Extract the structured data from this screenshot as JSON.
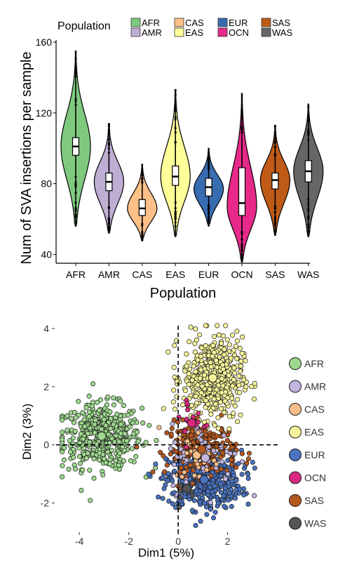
{
  "chart_data": [
    {
      "type": "violin",
      "xlabel": "Population",
      "ylabel": "Num of SVA insertions per sample",
      "ylim": [
        35,
        160
      ],
      "yticks": [
        40,
        80,
        120,
        160
      ],
      "legend": {
        "title": "Population",
        "placement": "top",
        "labels": [
          "AFR",
          "AMR",
          "CAS",
          "EAS",
          "EUR",
          "OCN",
          "SAS",
          "WAS"
        ]
      },
      "categories": [
        "AFR",
        "AMR",
        "CAS",
        "EAS",
        "EUR",
        "OCN",
        "SAS",
        "WAS"
      ],
      "colors": [
        "#7fc97f",
        "#beaed4",
        "#fdc086",
        "#ffff99",
        "#386cb0",
        "#e7298a",
        "#bf5b17",
        "#666666"
      ],
      "series": [
        {
          "category": "AFR",
          "min": 56,
          "q1": 96,
          "median": 101,
          "q3": 106,
          "max": 155,
          "mode": 101
        },
        {
          "category": "AMR",
          "min": 52,
          "q1": 76,
          "median": 81,
          "q3": 86,
          "max": 114,
          "mode": 81
        },
        {
          "category": "CAS",
          "min": 48,
          "q1": 62,
          "median": 66,
          "q3": 71,
          "max": 91,
          "mode": 66
        },
        {
          "category": "EAS",
          "min": 50,
          "q1": 79,
          "median": 84,
          "q3": 90,
          "max": 133,
          "mode": 84
        },
        {
          "category": "EUR",
          "min": 56,
          "q1": 73,
          "median": 78,
          "q3": 83,
          "max": 100,
          "mode": 77
        },
        {
          "category": "OCN",
          "min": 36,
          "q1": 62,
          "median": 69,
          "q3": 89,
          "max": 131,
          "mode": 67
        },
        {
          "category": "SAS",
          "min": 51,
          "q1": 77,
          "median": 82,
          "q3": 86,
          "max": 113,
          "mode": 82
        },
        {
          "category": "WAS",
          "min": 50,
          "q1": 81,
          "median": 87,
          "q3": 93,
          "max": 125,
          "mode": 87
        }
      ]
    },
    {
      "type": "scatter",
      "xlabel": "Dim1 (5%)",
      "ylabel": "Dim2 (3%)",
      "xlim": [
        -5,
        4
      ],
      "ylim": [
        -3,
        4
      ],
      "xticks": [
        -4,
        -2,
        0,
        2
      ],
      "yticks": [
        -2,
        0,
        2,
        4
      ],
      "reference_lines": {
        "x": 0,
        "y": 0,
        "style": "dashed"
      },
      "legend": {
        "placement": "right",
        "labels": [
          "AFR",
          "AMR",
          "CAS",
          "EAS",
          "EUR",
          "OCN",
          "SAS",
          "WAS"
        ]
      },
      "series": [
        {
          "name": "AFR",
          "color": "#9fd98f",
          "centroid": [
            -3.1,
            0.3
          ],
          "spread": [
            0.8,
            0.55
          ],
          "count": 480
        },
        {
          "name": "AMR",
          "color": "#c2b5e0",
          "centroid": [
            1.1,
            -0.45
          ],
          "spread": [
            0.7,
            0.6
          ],
          "count": 60
        },
        {
          "name": "CAS",
          "color": "#f9bf8b",
          "centroid": [
            0.75,
            -0.35
          ],
          "spread": [
            0.45,
            0.45
          ],
          "count": 25
        },
        {
          "name": "EAS",
          "color": "#f7f59b",
          "centroid": [
            1.4,
            2.3
          ],
          "spread": [
            0.6,
            0.7
          ],
          "count": 500
        },
        {
          "name": "EUR",
          "color": "#4a73c1",
          "centroid": [
            1.05,
            -1.2
          ],
          "spread": [
            0.75,
            0.5
          ],
          "count": 480
        },
        {
          "name": "OCN",
          "color": "#d8297e",
          "centroid": [
            0.55,
            0.75
          ],
          "spread": [
            0.35,
            0.5
          ],
          "count": 18
        },
        {
          "name": "SAS",
          "color": "#b5581e",
          "centroid": [
            0.95,
            -0.15
          ],
          "spread": [
            0.7,
            0.45
          ],
          "count": 230
        },
        {
          "name": "WAS",
          "color": "#555555",
          "centroid": [
            0.35,
            -1.5
          ],
          "spread": [
            0.3,
            0.3
          ],
          "count": 6
        }
      ]
    }
  ]
}
